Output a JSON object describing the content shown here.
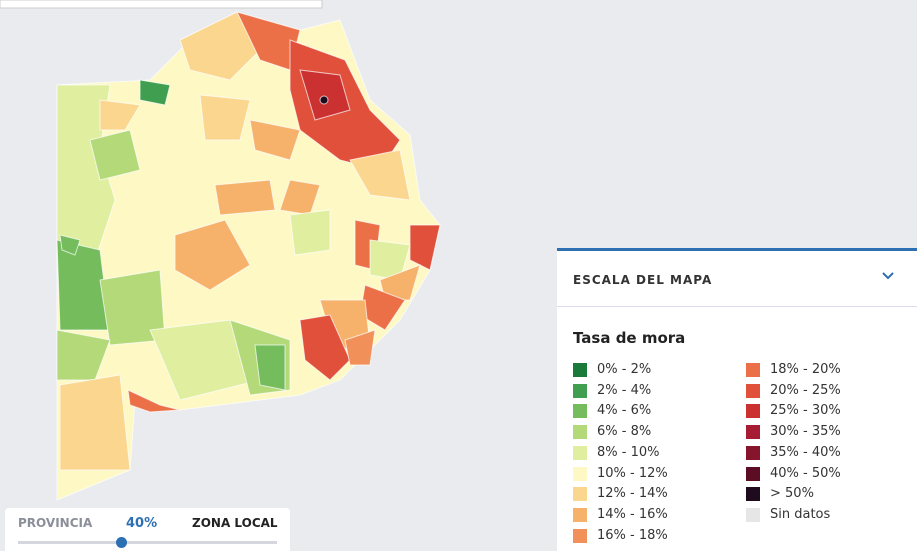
{
  "legend": {
    "header": "ESCALA DEL MAPA",
    "title": "Tasa de mora",
    "items": [
      {
        "label": "0% - 2%",
        "color": "#1a7a3a"
      },
      {
        "label": "2% - 4%",
        "color": "#3f9e4f"
      },
      {
        "label": "4% - 6%",
        "color": "#74bc5c"
      },
      {
        "label": "6% - 8%",
        "color": "#b3d978"
      },
      {
        "label": "8% - 10%",
        "color": "#dfee9f"
      },
      {
        "label": "10% - 12%",
        "color": "#fdf8c4"
      },
      {
        "label": "12% - 14%",
        "color": "#fbd68e"
      },
      {
        "label": "14% - 16%",
        "color": "#f6b26b"
      },
      {
        "label": "16% - 18%",
        "color": "#f19058"
      },
      {
        "label": "18% - 20%",
        "color": "#eb7048"
      },
      {
        "label": "20% - 25%",
        "color": "#e0503b"
      },
      {
        "label": "25% - 30%",
        "color": "#cc3131"
      },
      {
        "label": "30% - 35%",
        "color": "#a61c32"
      },
      {
        "label": "35% - 40%",
        "color": "#87142d"
      },
      {
        "label": "40% - 50%",
        "color": "#5c0c24"
      },
      {
        "label": "> 50%",
        "color": "#1e0b1e"
      },
      {
        "label": "Sin datos",
        "color": "#e6e6e6"
      }
    ]
  },
  "slider": {
    "left_label": "PROVINCIA",
    "value_label": "40%",
    "right_label": "ZONA LOCAL"
  }
}
